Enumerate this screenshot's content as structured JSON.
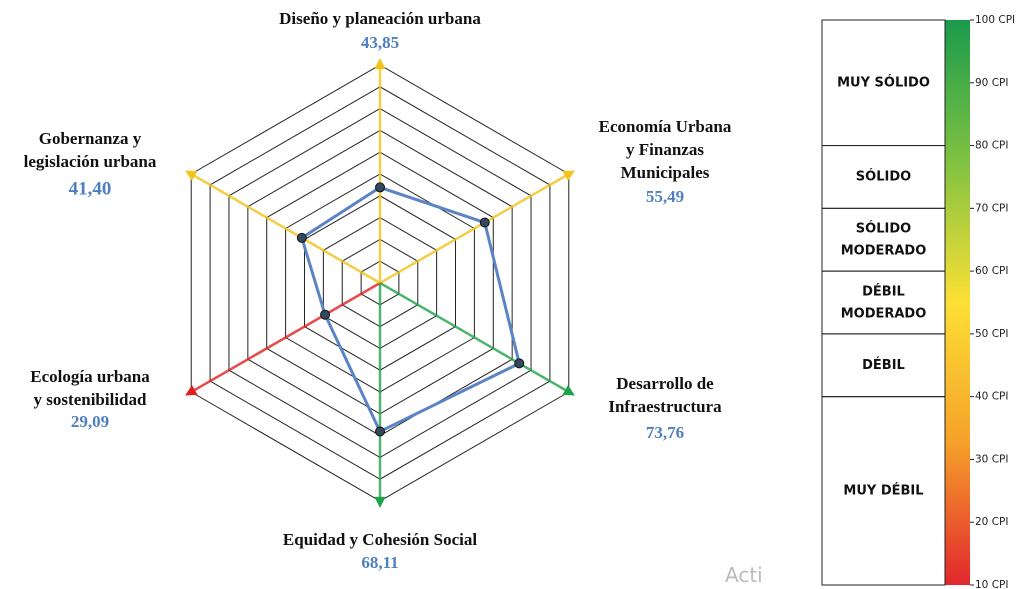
{
  "chart_data": [
    {
      "type": "radar",
      "categories": [
        "Diseño y planeación urbana",
        "Economía Urbana\ny Finanzas\nMunicipales",
        "Desarrollo de\nInfraestructura",
        "Equidad y Cohesión Social",
        "Ecología urbana\ny sostenibilidad",
        "Gobernanza y\nlegislación urbana"
      ],
      "axis_colors": [
        "#f2c318",
        "#f2c318",
        "#1fa34a",
        "#1fa34a",
        "#e02020",
        "#f2c318"
      ],
      "series": [
        {
          "name": null,
          "color": "#5b84c6",
          "values": [
            43.85,
            55.49,
            73.76,
            68.11,
            29.09,
            41.4
          ],
          "value_labels": [
            "43,85",
            "55,49",
            "73,76",
            "68,11",
            "29,09",
            "41,40"
          ]
        }
      ],
      "rlim": [
        0,
        100
      ],
      "rticks": [
        10,
        20,
        30,
        40,
        50,
        60,
        70,
        80,
        90,
        100
      ],
      "watermark": "Acti"
    },
    {
      "type": "colorbar",
      "ylim": [
        10,
        100
      ],
      "yticks": [
        {
          "value": 10,
          "label": "10 CPI"
        },
        {
          "value": 20,
          "label": "20 CPI"
        },
        {
          "value": 30,
          "label": "30 CPI"
        },
        {
          "value": 40,
          "label": "40 CPI"
        },
        {
          "value": 50,
          "label": "50 CPI"
        },
        {
          "value": 60,
          "label": "60 CPI"
        },
        {
          "value": 70,
          "label": "70 CPI"
        },
        {
          "value": 80,
          "label": "80 CPI"
        },
        {
          "value": 90,
          "label": "90 CPI"
        },
        {
          "value": 100,
          "label": "100 CPI"
        }
      ],
      "gradient_colors": [
        "#1a9a4c",
        "#7fc241",
        "#fde034",
        "#f5a02a",
        "#e2262d"
      ],
      "bands": [
        {
          "label": "MUY SÓLIDO",
          "from": 80,
          "to": 100
        },
        {
          "label": "SÓLIDO",
          "from": 70,
          "to": 80
        },
        {
          "label": "SÓLIDO\nMODERADO",
          "from": 60,
          "to": 70
        },
        {
          "label": "DÉBIL\nMODERADO",
          "from": 50,
          "to": 60
        },
        {
          "label": "DÉBIL",
          "from": 40,
          "to": 50
        },
        {
          "label": "MUY DÉBIL",
          "from": 10,
          "to": 40
        }
      ]
    }
  ]
}
